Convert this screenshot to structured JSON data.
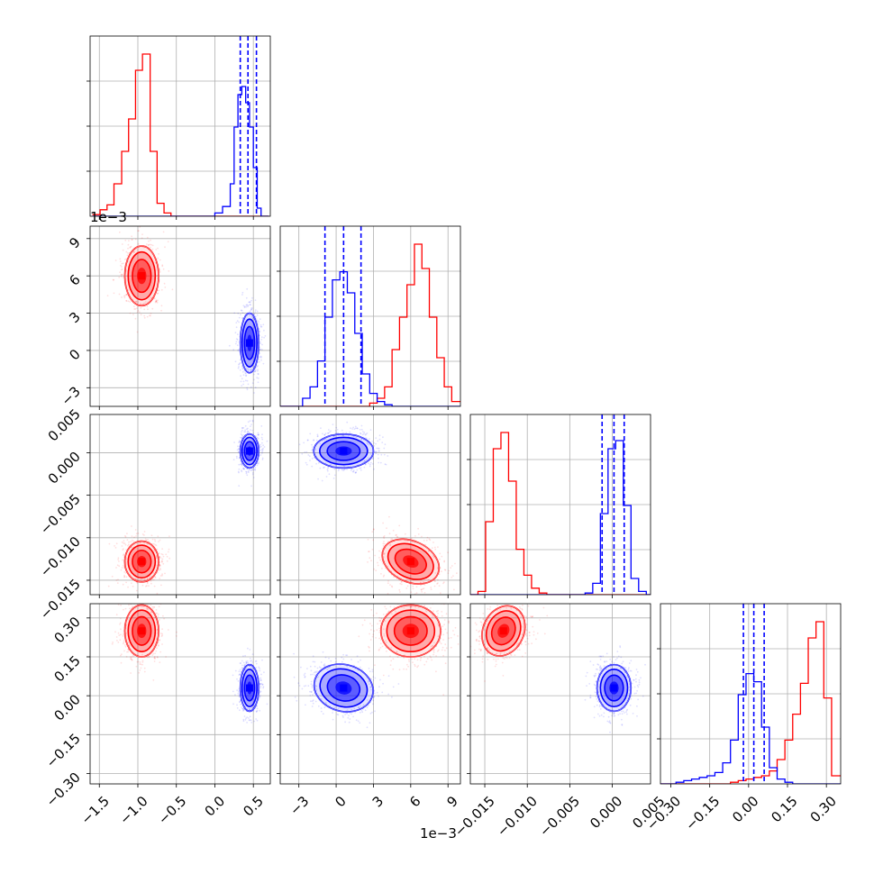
{
  "chart_data": {
    "type": "corner",
    "grid": true,
    "colors": {
      "series_a": "#ff0000",
      "series_b": "#0000ff"
    },
    "parameters": [
      {
        "tick_labels": [
          "−1.5",
          "−1.0",
          "−0.5",
          "0.0",
          "0.5"
        ],
        "ticks": [
          -1.5,
          -1.0,
          -0.5,
          0.0,
          0.5
        ],
        "range": [
          -1.62,
          0.72
        ]
      },
      {
        "tick_labels": [
          "−3",
          "0",
          "3",
          "6",
          "9"
        ],
        "ticks": [
          -3,
          0,
          3,
          6,
          9
        ],
        "range": [
          -4.5,
          10.0
        ],
        "offset_text": "1e−3"
      },
      {
        "tick_labels": [
          "−0.015",
          "−0.010",
          "−0.005",
          "0.000",
          "0.005"
        ],
        "ticks": [
          -0.015,
          -0.01,
          -0.005,
          0.0,
          0.005
        ],
        "range": [
          -0.0167,
          0.0045
        ]
      },
      {
        "tick_labels": [
          "−0.30",
          "−0.15",
          "0.00",
          "0.15",
          "0.30"
        ],
        "ticks": [
          -0.3,
          -0.15,
          0.0,
          0.15,
          0.3
        ],
        "range": [
          -0.34,
          0.355
        ]
      }
    ],
    "series": [
      {
        "color": "#ff0000",
        "means": [
          -0.95,
          6.0,
          -0.0128,
          0.25
        ],
        "stds": [
          0.11,
          1.2,
          0.0012,
          0.05
        ]
      },
      {
        "color": "#0000ff",
        "means": [
          0.45,
          0.6,
          0.0002,
          0.03
        ],
        "stds": [
          0.06,
          1.2,
          0.001,
          0.045
        ]
      }
    ],
    "quantiles_b": [
      [
        0.33,
        0.43,
        0.54
      ],
      [
        -0.9,
        0.6,
        2.0
      ],
      [
        -0.0012,
        0.0002,
        0.0014
      ],
      [
        -0.02,
        0.02,
        0.06
      ]
    ],
    "histograms": [
      {
        "edges": [
          -1.59,
          -1.49,
          -1.4,
          -1.31,
          -1.21,
          -1.12,
          -1.03,
          -0.94,
          -0.84,
          -0.75,
          -0.66,
          -0.57,
          0.0,
          0.1,
          0.2,
          0.25,
          0.3,
          0.35,
          0.4,
          0.45,
          0.5,
          0.55,
          0.6,
          0.65,
          0.7
        ],
        "red": [
          0.01,
          0.04,
          0.07,
          0.2,
          0.4,
          0.6,
          0.9,
          1.0,
          0.4,
          0.08,
          0.02,
          0,
          0,
          0,
          0,
          0,
          0,
          0,
          0,
          0,
          0,
          0,
          0,
          0
        ],
        "blue": [
          0,
          0,
          0,
          0,
          0,
          0,
          0,
          0,
          0,
          0,
          0,
          0,
          0.02,
          0.06,
          0.2,
          0.55,
          0.75,
          0.8,
          0.7,
          0.55,
          0.3,
          0.05,
          0,
          0
        ]
      },
      {
        "edges": [
          -4.5,
          -3.9,
          -3.3,
          -2.7,
          -2.1,
          -1.5,
          -0.9,
          -0.3,
          0.3,
          0.9,
          1.5,
          2.1,
          2.7,
          3.3,
          3.9,
          4.5,
          5.1,
          5.7,
          6.3,
          6.9,
          7.5,
          8.1,
          8.7,
          9.3,
          10.0
        ],
        "red": [
          0,
          0,
          0,
          0,
          0,
          0,
          0,
          0,
          0,
          0,
          0,
          0,
          0.02,
          0.05,
          0.12,
          0.35,
          0.55,
          0.75,
          1.0,
          0.85,
          0.55,
          0.3,
          0.12,
          0.03
        ],
        "blue": [
          0,
          0,
          0,
          0.05,
          0.12,
          0.28,
          0.55,
          0.78,
          0.83,
          0.7,
          0.45,
          0.2,
          0.08,
          0.03,
          0.01,
          0,
          0,
          0,
          0,
          0,
          0,
          0,
          0,
          0
        ]
      },
      {
        "edges": [
          -0.0167,
          -0.0158,
          -0.0149,
          -0.014,
          -0.0131,
          -0.0122,
          -0.0113,
          -0.0104,
          -0.0095,
          -0.0086,
          -0.0077,
          -0.0068,
          -0.0059,
          -0.005,
          -0.0041,
          -0.0032,
          -0.0023,
          -0.0014,
          -0.0005,
          0.0004,
          0.0013,
          0.0022,
          0.0031,
          0.004,
          0.0045
        ],
        "red": [
          0,
          0.02,
          0.45,
          0.9,
          1.0,
          0.7,
          0.28,
          0.12,
          0.04,
          0.01,
          0,
          0,
          0,
          0,
          0,
          0,
          0,
          0,
          0,
          0,
          0,
          0,
          0,
          0
        ],
        "blue": [
          0,
          0,
          0,
          0,
          0,
          0,
          0,
          0,
          0,
          0,
          0,
          0,
          0,
          0,
          0,
          0.01,
          0.07,
          0.5,
          0.9,
          0.95,
          0.55,
          0.1,
          0.02,
          0
        ]
      },
      {
        "edges": [
          -0.34,
          -0.31,
          -0.28,
          -0.25,
          -0.22,
          -0.19,
          -0.16,
          -0.13,
          -0.1,
          -0.07,
          -0.04,
          -0.01,
          0.02,
          0.05,
          0.08,
          0.11,
          0.14,
          0.17,
          0.2,
          0.23,
          0.26,
          0.29,
          0.32,
          0.355
        ],
        "red": [
          0,
          0,
          0,
          0,
          0,
          0,
          0,
          0,
          0,
          0.01,
          0.02,
          0.03,
          0.04,
          0.05,
          0.08,
          0.15,
          0.27,
          0.43,
          0.62,
          0.9,
          1.0,
          0.53,
          0.05
        ],
        "blue": [
          0,
          0,
          0.01,
          0.02,
          0.03,
          0.04,
          0.05,
          0.07,
          0.13,
          0.27,
          0.55,
          0.68,
          0.63,
          0.35,
          0.1,
          0.03,
          0.01,
          0,
          0,
          0,
          0,
          0,
          0
        ]
      }
    ]
  }
}
